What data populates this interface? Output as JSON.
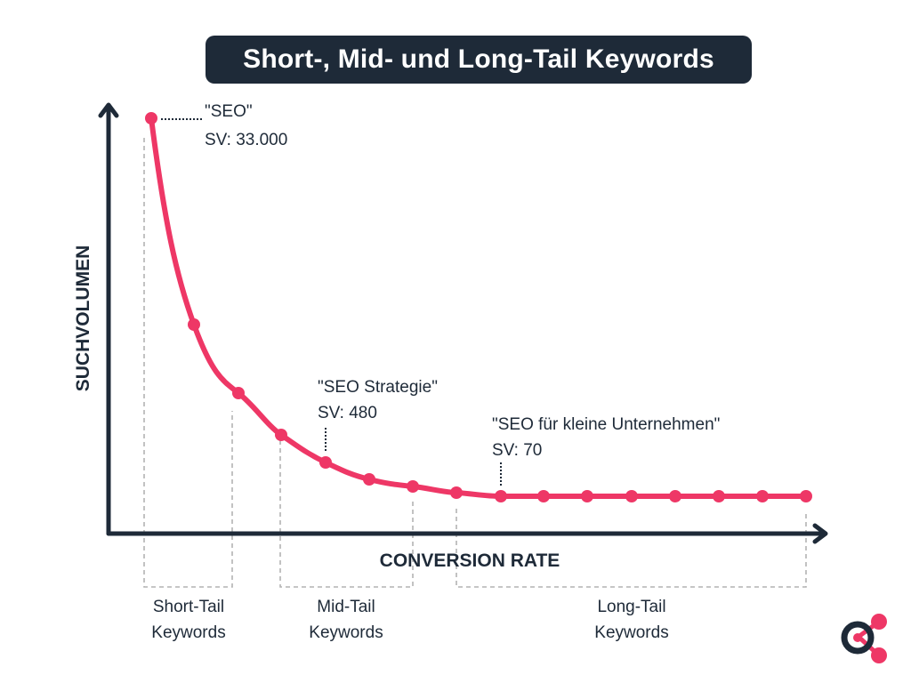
{
  "title": "Short-, Mid- und Long-Tail Keywords",
  "axes": {
    "y_label": "SUCHVOLUMEN",
    "x_label": "CONVERSION RATE"
  },
  "annotations": [
    {
      "keyword": "\"SEO\"",
      "volume": "SV: 33.000"
    },
    {
      "keyword": "\"SEO Strategie\"",
      "volume": "SV: 480"
    },
    {
      "keyword": "\"SEO für kleine Unternehmen\"",
      "volume": "SV: 70"
    }
  ],
  "groups": [
    {
      "line1": "Short-Tail",
      "line2": "Keywords"
    },
    {
      "line1": "Mid-Tail",
      "line2": "Keywords"
    },
    {
      "line1": "Long-Tail",
      "line2": "Keywords"
    }
  ],
  "colors": {
    "curve": "#ee3766",
    "axis": "#1e2a38",
    "guide": "#b3b3b3",
    "title_bg": "#1e2a38",
    "text": "#1e2a38"
  },
  "logo": {
    "icon": "share-logo-icon"
  }
}
